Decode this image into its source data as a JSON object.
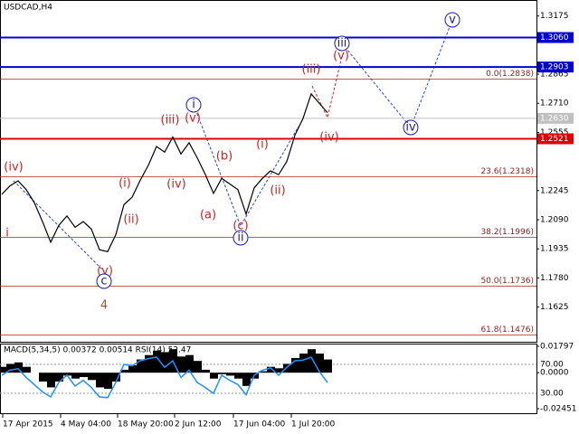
{
  "chart_data": {
    "type": "line",
    "title": "USDCAD,H4",
    "color": "#000000",
    "values": [
      1.2225,
      1.227,
      1.2297,
      1.225,
      1.218,
      1.208,
      1.197,
      1.206,
      1.211,
      1.205,
      1.208,
      1.204,
      1.193,
      1.192,
      1.201,
      1.217,
      1.221,
      1.23,
      1.238,
      1.248,
      1.245,
      1.253,
      1.244,
      1.25,
      1.242,
      1.233,
      1.223,
      1.231,
      1.228,
      1.225,
      1.212,
      1.226,
      1.231,
      1.235,
      1.233,
      1.24,
      1.254,
      1.263,
      1.276,
      1.271,
      1.266
    ],
    "ylim": [
      1.144,
      1.326
    ],
    "yticks": [
      1.3175,
      1.2865,
      {
        "value": 1.271,
        "label": "1.2710"
      },
      1.2555,
      1.2245,
      {
        "value": 1.209,
        "label": "1.2090"
      },
      1.1935,
      {
        "value": 1.178,
        "label": "1.1780"
      },
      1.1625
    ],
    "x_labels": [
      "17 Apr 2015",
      "4 May 04:00",
      "18 May 20:00",
      "2 Jun 12:00",
      "17 Jun 04:00",
      "1 Jul 20:00"
    ],
    "levels": [
      {
        "value": 1.306,
        "label": "1.3060",
        "color": "#0000cc"
      },
      {
        "value": 1.2903,
        "label": "1.2903",
        "color": "#0000cc"
      },
      {
        "value": 1.263,
        "label": "1.2630",
        "color": "#c0c0c0"
      },
      {
        "value": 1.2521,
        "label": "1.2521",
        "color": "#dd0000"
      }
    ],
    "fib": [
      {
        "value": 1.2838,
        "label": "0.0(1.2838)"
      },
      {
        "value": 1.2318,
        "label": "23.6(1.2318)"
      },
      {
        "value": 1.1996,
        "label": "38.2(1.1996)"
      },
      {
        "value": 1.1736,
        "label": "50.0(1.1736)"
      },
      {
        "value": 1.1476,
        "label": "61.8(1.1476)"
      }
    ],
    "waves": [
      {
        "text": "(iv)",
        "color": "#cc2222"
      },
      {
        "text": "i",
        "color": "#cc2222"
      },
      {
        "text": "(v)",
        "color": "#cc2222"
      },
      {
        "text": "4",
        "color": "#a0522d"
      },
      {
        "text": "(i)",
        "color": "#cc2222"
      },
      {
        "text": "(ii)",
        "color": "#cc2222"
      },
      {
        "text": "(iii)",
        "color": "#cc2222"
      },
      {
        "text": "(v)",
        "color": "#cc2222"
      },
      {
        "text": "(iv)",
        "color": "#cc2222"
      },
      {
        "text": "(b)",
        "color": "#cc2222"
      },
      {
        "text": "(a)",
        "color": "#cc2222"
      },
      {
        "text": "(c)",
        "color": "#cc2222"
      },
      {
        "text": "(i)",
        "color": "#cc2222"
      },
      {
        "text": "(ii)",
        "color": "#cc2222"
      },
      {
        "text": "(iii)",
        "color": "#cc2222"
      },
      {
        "text": "(v)",
        "color": "#cc2222"
      },
      {
        "text": "(iv)",
        "color": "#cc2222"
      },
      {
        "text": "c",
        "color": "#1a1aaa"
      },
      {
        "text": "i",
        "color": "#1a1aaa"
      },
      {
        "text": "ii",
        "color": "#1a1aaa"
      },
      {
        "text": "iii",
        "color": "#1a1aaa"
      },
      {
        "text": "iv",
        "color": "#1a1aaa"
      },
      {
        "text": "v",
        "color": "#1a1aaa"
      }
    ],
    "indicator": {
      "label": "MACD(5,34,5) 0.00372 0.00514 RSI(14) 52.47",
      "macd_lim": [
        -0.02451,
        0.01797
      ],
      "macd_ticks": [
        0.01797,
        {
          "value": 0,
          "label": "0.0000"
        },
        -0.02451
      ],
      "rsi_lim": [
        0,
        100
      ],
      "rsi_ticks": [
        {
          "value": 70,
          "label": "70.00"
        },
        {
          "value": 30,
          "label": "30.00"
        }
      ],
      "macd": [
        0.004,
        0.006,
        0.007,
        0.004,
        0.0,
        -0.006,
        -0.01,
        -0.006,
        -0.002,
        -0.004,
        -0.003,
        -0.005,
        -0.01,
        -0.011,
        -0.006,
        0.002,
        0.005,
        0.009,
        0.012,
        0.015,
        0.014,
        0.016,
        0.011,
        0.012,
        0.008,
        0.002,
        -0.004,
        -0.001,
        -0.002,
        -0.004,
        -0.009,
        -0.004,
        0.001,
        0.004,
        0.003,
        0.006,
        0.01,
        0.013,
        0.016,
        0.013,
        0.009
      ],
      "rsi": [
        55,
        62,
        64,
        52,
        42,
        32,
        25,
        45,
        55,
        40,
        48,
        38,
        25,
        24,
        45,
        70,
        68,
        75,
        78,
        80,
        66,
        75,
        52,
        62,
        45,
        38,
        30,
        55,
        48,
        42,
        28,
        55,
        62,
        65,
        55,
        66,
        75,
        76,
        80,
        60,
        45
      ],
      "rsi_color": "#1e90ff"
    }
  }
}
